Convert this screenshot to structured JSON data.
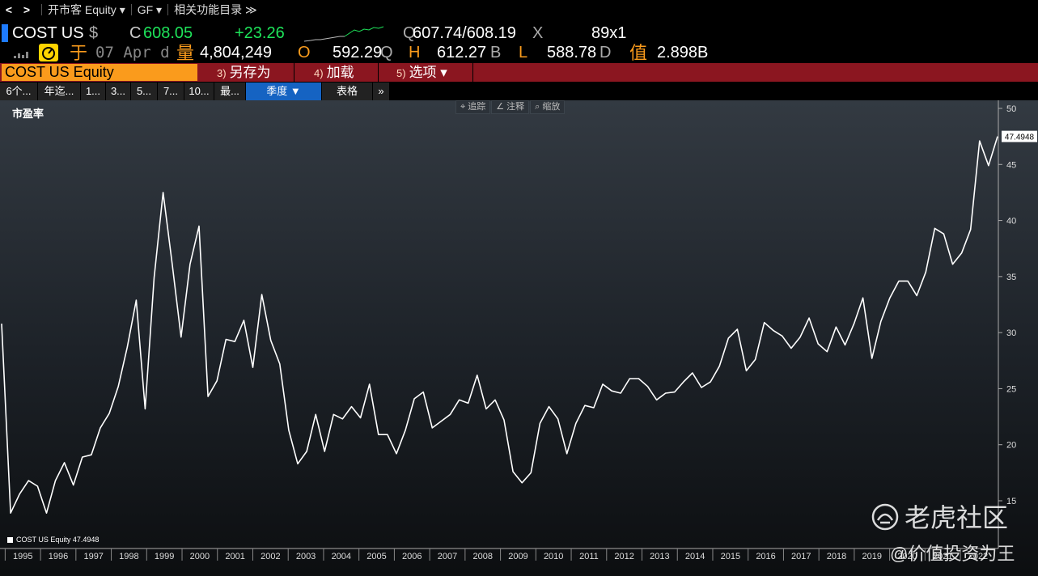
{
  "nav": {
    "back": "<",
    "forward": ">",
    "market_security": "开市客 Equity ▾",
    "function": "GF ▾",
    "related": "相关功能目录 ≫"
  },
  "quote": {
    "ticker": "COST US",
    "currency": "$",
    "price_prefix": "C",
    "price": "608.05",
    "change": "+23.26",
    "bid_prefix": "Q",
    "bid_ask": "607.74/608.19",
    "ask_suffix": "X",
    "size": "89x1",
    "at_label": "于",
    "date": "07 Apr d",
    "volume_label": "量",
    "volume": "4,804,249",
    "open_label": "O",
    "open": "592.29",
    "open_suffix": "Q",
    "high_label": "H",
    "high": "612.27",
    "high_suffix": "B",
    "low_label": "L",
    "low": "588.78",
    "low_suffix": "D",
    "value_label": "值",
    "value": "2.898B"
  },
  "actions": {
    "security": "COST US Equity",
    "save_num": "3)",
    "save_as": "另存为",
    "load_num": "4)",
    "load": "加载",
    "options_num": "5)",
    "options": "选项 ▾"
  },
  "tabs": [
    {
      "label": "6个..."
    },
    {
      "label": "年迄..."
    },
    {
      "label": "1..."
    },
    {
      "label": "3..."
    },
    {
      "label": "5..."
    },
    {
      "label": "7..."
    },
    {
      "label": "10..."
    },
    {
      "label": "最..."
    },
    {
      "label": "季度 ▼"
    },
    {
      "label": "表格"
    },
    {
      "label": "»"
    }
  ],
  "tools": {
    "track": "⌖ 追踪",
    "annotate": "∠ 注释",
    "zoom": "⌕ 缩放"
  },
  "watermark": {
    "logo": "老虎社区",
    "author": "@价值投资为王"
  },
  "chart_data": {
    "type": "line",
    "title": "市盈率",
    "legend": "COST US Equity 47.4948",
    "last_value_label": "47.4948",
    "frequency": "quarterly",
    "y_ticks": [
      15,
      20,
      25,
      30,
      35,
      40,
      45,
      50
    ],
    "ylim": [
      12,
      51
    ],
    "x_year_labels": [
      "1995",
      "1996",
      "1997",
      "1998",
      "1999",
      "2000",
      "2001",
      "2002",
      "2003",
      "2004",
      "2005",
      "2006",
      "2007",
      "2008",
      "2009",
      "2010",
      "2011",
      "2012",
      "2013",
      "2014",
      "2015",
      "2016",
      "2017",
      "2018",
      "2019",
      "2020",
      "2021",
      "2022"
    ],
    "x_start": 1994.9,
    "x_end": 2023.05,
    "colors": {
      "line": "#ffffff",
      "axis": "#cccccc"
    },
    "series": [
      {
        "values": [
          30.8,
          13.9,
          15.6,
          16.8,
          16.3,
          13.9,
          16.8,
          18.4,
          16.4,
          18.9,
          19.1,
          21.5,
          22.8,
          25.2,
          28.7,
          32.9,
          23.2,
          34.9,
          42.5,
          36.2,
          29.6,
          36.1,
          39.5,
          24.3,
          25.7,
          29.4,
          29.2,
          31.1,
          26.9,
          33.4,
          29.3,
          27.2,
          21.3,
          18.3,
          19.4,
          22.7,
          19.4,
          22.7,
          22.3,
          23.4,
          22.4,
          25.4,
          20.9,
          20.9,
          19.2,
          21.3,
          24.1,
          24.7,
          21.5,
          22.1,
          22.7,
          24.0,
          23.7,
          26.2,
          23.2,
          24.0,
          22.2,
          17.6,
          16.6,
          17.5,
          21.9,
          23.4,
          22.3,
          19.2,
          21.9,
          23.5,
          23.3,
          25.4,
          24.8,
          24.6,
          25.9,
          25.9,
          25.2,
          24.0,
          24.6,
          24.7,
          25.6,
          26.4,
          25.1,
          25.6,
          27.0,
          29.5,
          30.3,
          26.6,
          27.6,
          30.9,
          30.2,
          29.7,
          28.6,
          29.6,
          31.3,
          29.0,
          28.3,
          30.5,
          28.9,
          30.8,
          33.1,
          27.7,
          31.0,
          33.1,
          34.6,
          34.6,
          33.3,
          35.4,
          39.3,
          38.8,
          36.1,
          37.1,
          39.2,
          47.1,
          44.9,
          47.5
        ]
      }
    ]
  }
}
